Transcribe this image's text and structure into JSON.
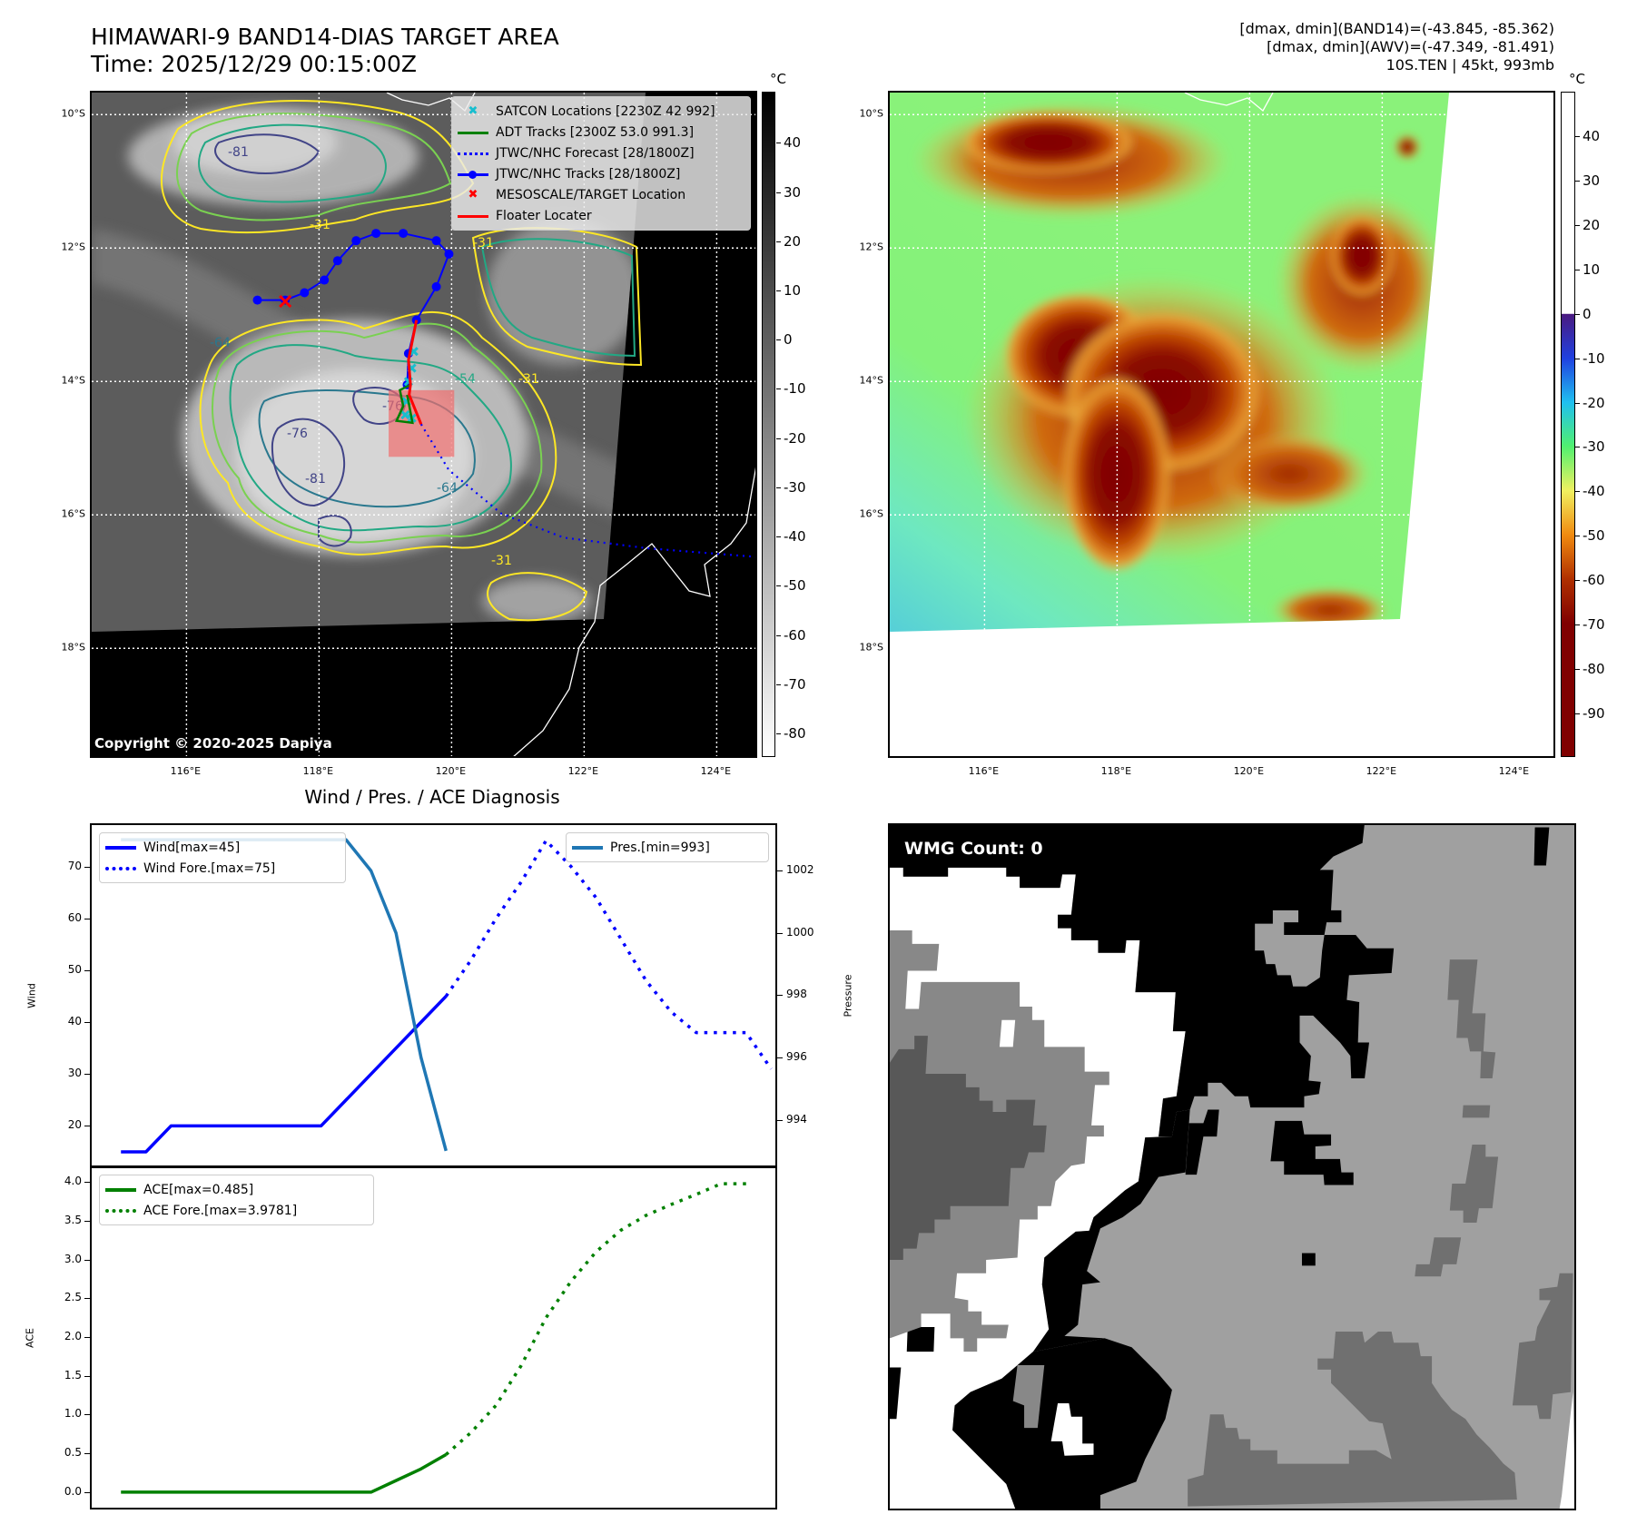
{
  "header": {
    "title": "HIMAWARI-9 BAND14-DIAS TARGET AREA",
    "time": "Time: 2025/12/29 00:15:00Z",
    "stats": [
      "[dmax, dmin](BAND14)=(-43.845, -85.362)",
      "[dmax, dmin](AWV)=(-47.349, -81.491)",
      "10S.TEN | 45kt, 993mb"
    ]
  },
  "map_ir": {
    "unit": "°C",
    "lat_labels": [
      "10°S",
      "12°S",
      "14°S",
      "16°S",
      "18°S"
    ],
    "lon_labels": [
      "116°E",
      "118°E",
      "120°E",
      "122°E",
      "124°E"
    ],
    "colorbar_ticks": [
      "40",
      "30",
      "20",
      "10",
      "0",
      "-10",
      "-20",
      "-30",
      "-40",
      "-50",
      "-60",
      "-70",
      "-80"
    ],
    "colorbar_range": [
      50.4,
      -84.8
    ],
    "copyright": "Copyright © 2020-2025 Dapiya",
    "contour_labels": [
      "-81",
      "-31",
      "-31",
      "-64",
      "-54",
      "-76",
      "-76",
      "-81",
      "-64",
      "-31",
      "-31"
    ],
    "legend": [
      {
        "label": "SATCON Locations [2230Z 42 992]",
        "icon": "cyan-x-marker",
        "color": "#17becf"
      },
      {
        "label": "ADT Tracks [2300Z 53.0 991.3]",
        "icon": "green-line",
        "color": "#008000"
      },
      {
        "label": "JTWC/NHC Forecast [28/1800Z]",
        "icon": "blue-dotted-line",
        "color": "#0000ff"
      },
      {
        "label": "JTWC/NHC Tracks [28/1800Z]",
        "icon": "blue-line-dot",
        "color": "#0000ff"
      },
      {
        "label": "MESOSCALE/TARGET Location",
        "icon": "red-x-marker",
        "color": "#ff0000"
      },
      {
        "label": "Floater Locater",
        "icon": "red-line",
        "color": "#ff0000"
      }
    ],
    "tracks": {
      "jtwc_track": [
        [
          117.07,
          12.78
        ],
        [
          117.49,
          12.78
        ],
        [
          117.78,
          12.67
        ],
        [
          118.08,
          12.48
        ],
        [
          118.28,
          12.19
        ],
        [
          118.56,
          11.89
        ],
        [
          118.86,
          11.78
        ],
        [
          119.27,
          11.78
        ],
        [
          119.77,
          11.89
        ],
        [
          119.96,
          12.09
        ],
        [
          119.77,
          12.58
        ],
        [
          119.47,
          13.08
        ],
        [
          119.35,
          13.58
        ],
        [
          119.33,
          14.05
        ]
      ],
      "jtwc_forecast": [
        [
          119.54,
          14.64
        ],
        [
          119.96,
          15.33
        ],
        [
          120.75,
          15.98
        ],
        [
          121.69,
          16.34
        ],
        [
          122.95,
          16.5
        ],
        [
          124.6,
          16.63
        ]
      ],
      "floater": [
        [
          119.47,
          13.08
        ],
        [
          119.35,
          13.68
        ],
        [
          119.38,
          14.05
        ],
        [
          119.36,
          14.2
        ],
        [
          119.54,
          14.64
        ]
      ],
      "adt": [
        [
          119.38,
          14.05
        ],
        [
          119.22,
          14.13
        ],
        [
          119.27,
          14.37
        ],
        [
          119.17,
          14.59
        ],
        [
          119.41,
          14.62
        ],
        [
          119.33,
          14.2
        ]
      ],
      "satcon": [
        [
          119.43,
          13.55
        ],
        [
          119.4,
          13.8
        ],
        [
          119.35,
          14.0
        ],
        [
          119.32,
          14.3
        ],
        [
          119.3,
          14.5
        ],
        [
          119.4,
          14.55
        ]
      ],
      "target": [
        117.49,
        12.8
      ],
      "target_box": [
        [
          119.05,
          14.13
        ],
        [
          120.04,
          15.13
        ]
      ]
    }
  },
  "map_awv": {
    "unit": "°C",
    "lat_labels": [
      "10°S",
      "12°S",
      "14°S",
      "16°S",
      "18°S"
    ],
    "lon_labels": [
      "116°E",
      "118°E",
      "120°E",
      "122°E",
      "124°E"
    ],
    "colorbar_ticks": [
      "40",
      "30",
      "20",
      "10",
      "0",
      "-10",
      "-20",
      "-30",
      "-40",
      "-50",
      "-60",
      "-70",
      "-80",
      "-90"
    ],
    "colorbar_range": [
      50.1,
      -99.9
    ]
  },
  "chart_data": {
    "type": "line",
    "title": "Wind / Pres. / ACE Diagnosis",
    "x": [
      0,
      1,
      2,
      3,
      4,
      5,
      6,
      7,
      8,
      9,
      10,
      11,
      12,
      13,
      14,
      15,
      16,
      17,
      18,
      19,
      20,
      21,
      22,
      23,
      24,
      25
    ],
    "xlim": [
      -1.17,
      26.17
    ],
    "panels": [
      {
        "ylabel": "Wind",
        "ylim": [
          12.2,
          78
        ],
        "yticks": [
          20,
          30,
          40,
          50,
          60,
          70
        ],
        "y2label": "Pressure",
        "y2lim": [
          992.5,
          1003.47
        ],
        "y2ticks": [
          994,
          996,
          998,
          1000,
          1002
        ],
        "series": [
          {
            "name": "Wind[max=45]",
            "axis": "left",
            "style": "solid",
            "color": "#0000ff",
            "x0": 0,
            "values": [
              15,
              15,
              20,
              20,
              20,
              20,
              20,
              20,
              20,
              25,
              30,
              35,
              40,
              45
            ]
          },
          {
            "name": "Wind Fore.[max=75]",
            "axis": "left",
            "style": "dotted",
            "color": "#0000ff",
            "x0": 13,
            "values": [
              45,
              52,
              60,
              67,
              75,
              70,
              64,
              56,
              48,
              42,
              38,
              38,
              38,
              31
            ]
          },
          {
            "name": "Pres.[min=993]",
            "axis": "right",
            "style": "solid",
            "color": "#1f77b4",
            "x0": 0,
            "values": [
              1003,
              1003,
              1003,
              1003,
              1003,
              1003,
              1003,
              1003,
              1003,
              1003,
              1002,
              1000,
              996,
              993
            ]
          }
        ],
        "legend_left": [
          "Wind[max=45]",
          "Wind Fore.[max=75]"
        ],
        "legend_right": [
          "Pres.[min=993]"
        ]
      },
      {
        "ylabel": "ACE",
        "ylim": [
          -0.2,
          4.19
        ],
        "yticks": [
          "0.0",
          "0.5",
          "1.0",
          "1.5",
          "2.0",
          "2.5",
          "3.0",
          "3.5",
          "4.0"
        ],
        "series": [
          {
            "name": "ACE[max=0.485]",
            "style": "solid",
            "color": "#008000",
            "x0": 0,
            "values": [
              0,
              0,
              0,
              0,
              0,
              0,
              0,
              0,
              0,
              0,
              0,
              0.15,
              0.3,
              0.485
            ]
          },
          {
            "name": "ACE Fore.[max=3.9781]",
            "style": "dotted",
            "color": "#008000",
            "x0": 13,
            "values": [
              0.485,
              0.77,
              1.12,
              1.63,
              2.25,
              2.72,
              3.1,
              3.38,
              3.57,
              3.71,
              3.84,
              3.978,
              3.978
            ]
          }
        ]
      }
    ]
  },
  "wmg": {
    "label": "WMG Count: 0"
  }
}
